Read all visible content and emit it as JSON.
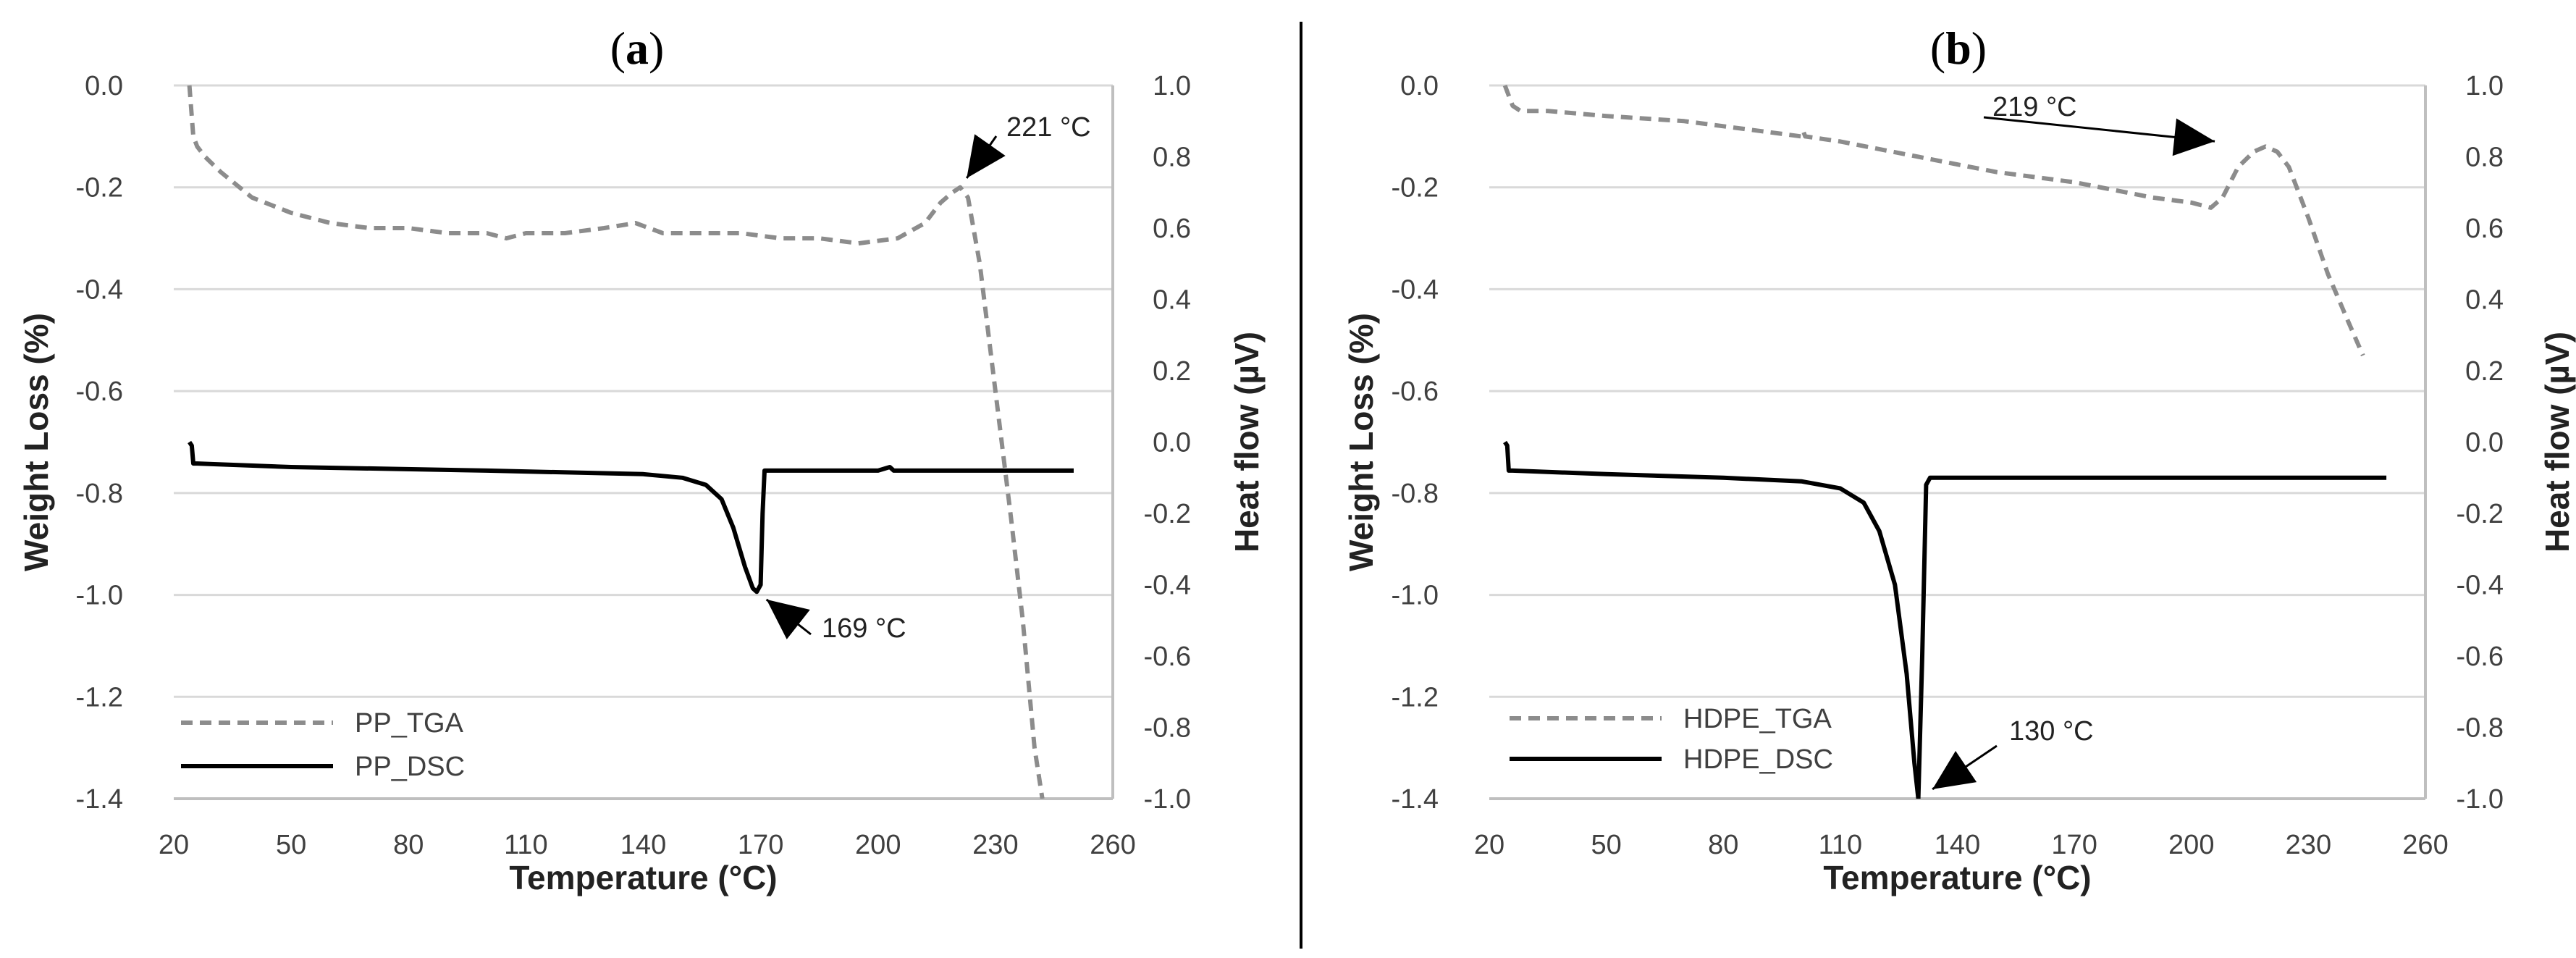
{
  "chart_data": [
    {
      "type": "line",
      "panel_label": "a",
      "xlabel": "Temperature (°C)",
      "ylabel": "Weight Loss (%)",
      "y2label": "Heat flow (µV)",
      "xlim": [
        20,
        260
      ],
      "ylim": [
        -1.4,
        0.0
      ],
      "y2lim": [
        -1.0,
        1.0
      ],
      "xticks": [
        "20",
        "50",
        "80",
        "110",
        "140",
        "170",
        "200",
        "230",
        "260"
      ],
      "yticks": [
        "0.0",
        "-0.2",
        "-0.4",
        "-0.6",
        "-0.8",
        "-1.0",
        "-1.2",
        "-1.4"
      ],
      "y2ticks": [
        "1.0",
        "0.8",
        "0.6",
        "0.4",
        "0.2",
        "0.0",
        "-0.2",
        "-0.4",
        "-0.6",
        "-0.8",
        "-1.0"
      ],
      "series": [
        {
          "name": "PP_TGA",
          "axis": "left",
          "style": "dashed",
          "color": "#8c8c8c",
          "x": [
            24,
            24.5,
            25,
            26,
            28,
            32,
            40,
            50,
            60,
            70,
            80,
            90,
            100,
            105,
            110,
            120,
            130,
            138,
            145,
            155,
            165,
            175,
            185,
            195,
            205,
            212,
            216,
            219,
            221,
            223,
            226,
            230,
            234,
            237,
            240,
            242
          ],
          "y": [
            0.0,
            -0.05,
            -0.1,
            -0.12,
            -0.14,
            -0.17,
            -0.22,
            -0.25,
            -0.27,
            -0.28,
            -0.28,
            -0.29,
            -0.29,
            -0.3,
            -0.29,
            -0.29,
            -0.28,
            -0.27,
            -0.29,
            -0.29,
            -0.29,
            -0.3,
            -0.3,
            -0.31,
            -0.3,
            -0.27,
            -0.23,
            -0.21,
            -0.2,
            -0.22,
            -0.35,
            -0.6,
            -0.85,
            -1.05,
            -1.3,
            -1.4
          ]
        },
        {
          "name": "PP_DSC",
          "axis": "right",
          "style": "solid",
          "color": "#000000",
          "x": [
            24,
            24.6,
            25,
            26,
            50,
            100,
            140,
            150,
            156,
            160,
            163,
            166,
            168,
            169,
            170,
            170.5,
            171,
            171.5,
            175,
            200,
            203,
            204,
            210,
            230,
            250
          ],
          "y": [
            0.0,
            -0.01,
            -0.06,
            -0.06,
            -0.07,
            -0.08,
            -0.09,
            -0.1,
            -0.12,
            -0.16,
            -0.24,
            -0.35,
            -0.41,
            -0.42,
            -0.4,
            -0.2,
            -0.08,
            -0.08,
            -0.08,
            -0.08,
            -0.07,
            -0.08,
            -0.08,
            -0.08,
            -0.08
          ]
        }
      ],
      "legend": [
        {
          "label": "PP_TGA",
          "style": "dashed",
          "color": "#8c8c8c"
        },
        {
          "label": "PP_DSC",
          "style": "solid",
          "color": "#000000"
        }
      ],
      "annotations": [
        {
          "text": "221 °C",
          "x": 221,
          "axis": "left",
          "y": -0.2
        },
        {
          "text": "169 °C",
          "x": 169,
          "axis": "right",
          "y": -0.42
        }
      ]
    },
    {
      "type": "line",
      "panel_label": "b",
      "xlabel": "Temperature (°C)",
      "ylabel": "Weight Loss (%)",
      "y2label": "Heat flow (µV)",
      "xlim": [
        20,
        260
      ],
      "ylim": [
        -1.4,
        0.0
      ],
      "y2lim": [
        -1.0,
        1.0
      ],
      "xticks": [
        "20",
        "50",
        "80",
        "110",
        "140",
        "170",
        "200",
        "230",
        "260"
      ],
      "yticks": [
        "0.0",
        "-0.2",
        "-0.4",
        "-0.6",
        "-0.8",
        "-1.0",
        "-1.2",
        "-1.4"
      ],
      "y2ticks": [
        "1.0",
        "0.8",
        "0.6",
        "0.4",
        "0.2",
        "0.0",
        "-0.2",
        "-0.4",
        "-0.6",
        "-0.8",
        "-1.0"
      ],
      "series": [
        {
          "name": "HDPE_TGA",
          "axis": "left",
          "style": "dashed",
          "color": "#8c8c8c",
          "x": [
            24,
            25,
            26,
            28,
            35,
            50,
            70,
            90,
            100,
            100.5,
            101,
            110,
            130,
            150,
            170,
            190,
            200,
            205,
            208,
            212,
            216,
            219,
            222,
            225,
            230,
            235,
            240,
            244
          ],
          "y": [
            0.0,
            -0.02,
            -0.04,
            -0.05,
            -0.05,
            -0.06,
            -0.07,
            -0.09,
            -0.1,
            -0.09,
            -0.1,
            -0.11,
            -0.14,
            -0.17,
            -0.19,
            -0.22,
            -0.23,
            -0.24,
            -0.22,
            -0.16,
            -0.13,
            -0.12,
            -0.13,
            -0.16,
            -0.26,
            -0.37,
            -0.46,
            -0.53
          ]
        },
        {
          "name": "HDPE_DSC",
          "axis": "right",
          "style": "solid",
          "color": "#000000",
          "x": [
            24,
            24.6,
            25,
            26,
            50,
            80,
            100,
            110,
            116,
            120,
            124,
            127,
            129,
            130,
            131,
            132,
            133,
            135,
            150,
            180,
            210,
            230,
            250
          ],
          "y": [
            0.0,
            -0.01,
            -0.08,
            -0.08,
            -0.09,
            -0.1,
            -0.11,
            -0.13,
            -0.17,
            -0.25,
            -0.4,
            -0.65,
            -0.9,
            -1.0,
            -0.6,
            -0.12,
            -0.1,
            -0.1,
            -0.1,
            -0.1,
            -0.1,
            -0.1,
            -0.1
          ]
        }
      ],
      "legend": [
        {
          "label": "HDPE_TGA",
          "style": "dashed",
          "color": "#8c8c8c"
        },
        {
          "label": "HDPE_DSC",
          "style": "solid",
          "color": "#000000"
        }
      ],
      "annotations": [
        {
          "text": "219 °C",
          "x": 219,
          "axis": "left",
          "y": -0.12
        },
        {
          "text": "130 °C",
          "x": 130,
          "axis": "right",
          "y": -1.0
        }
      ]
    }
  ]
}
